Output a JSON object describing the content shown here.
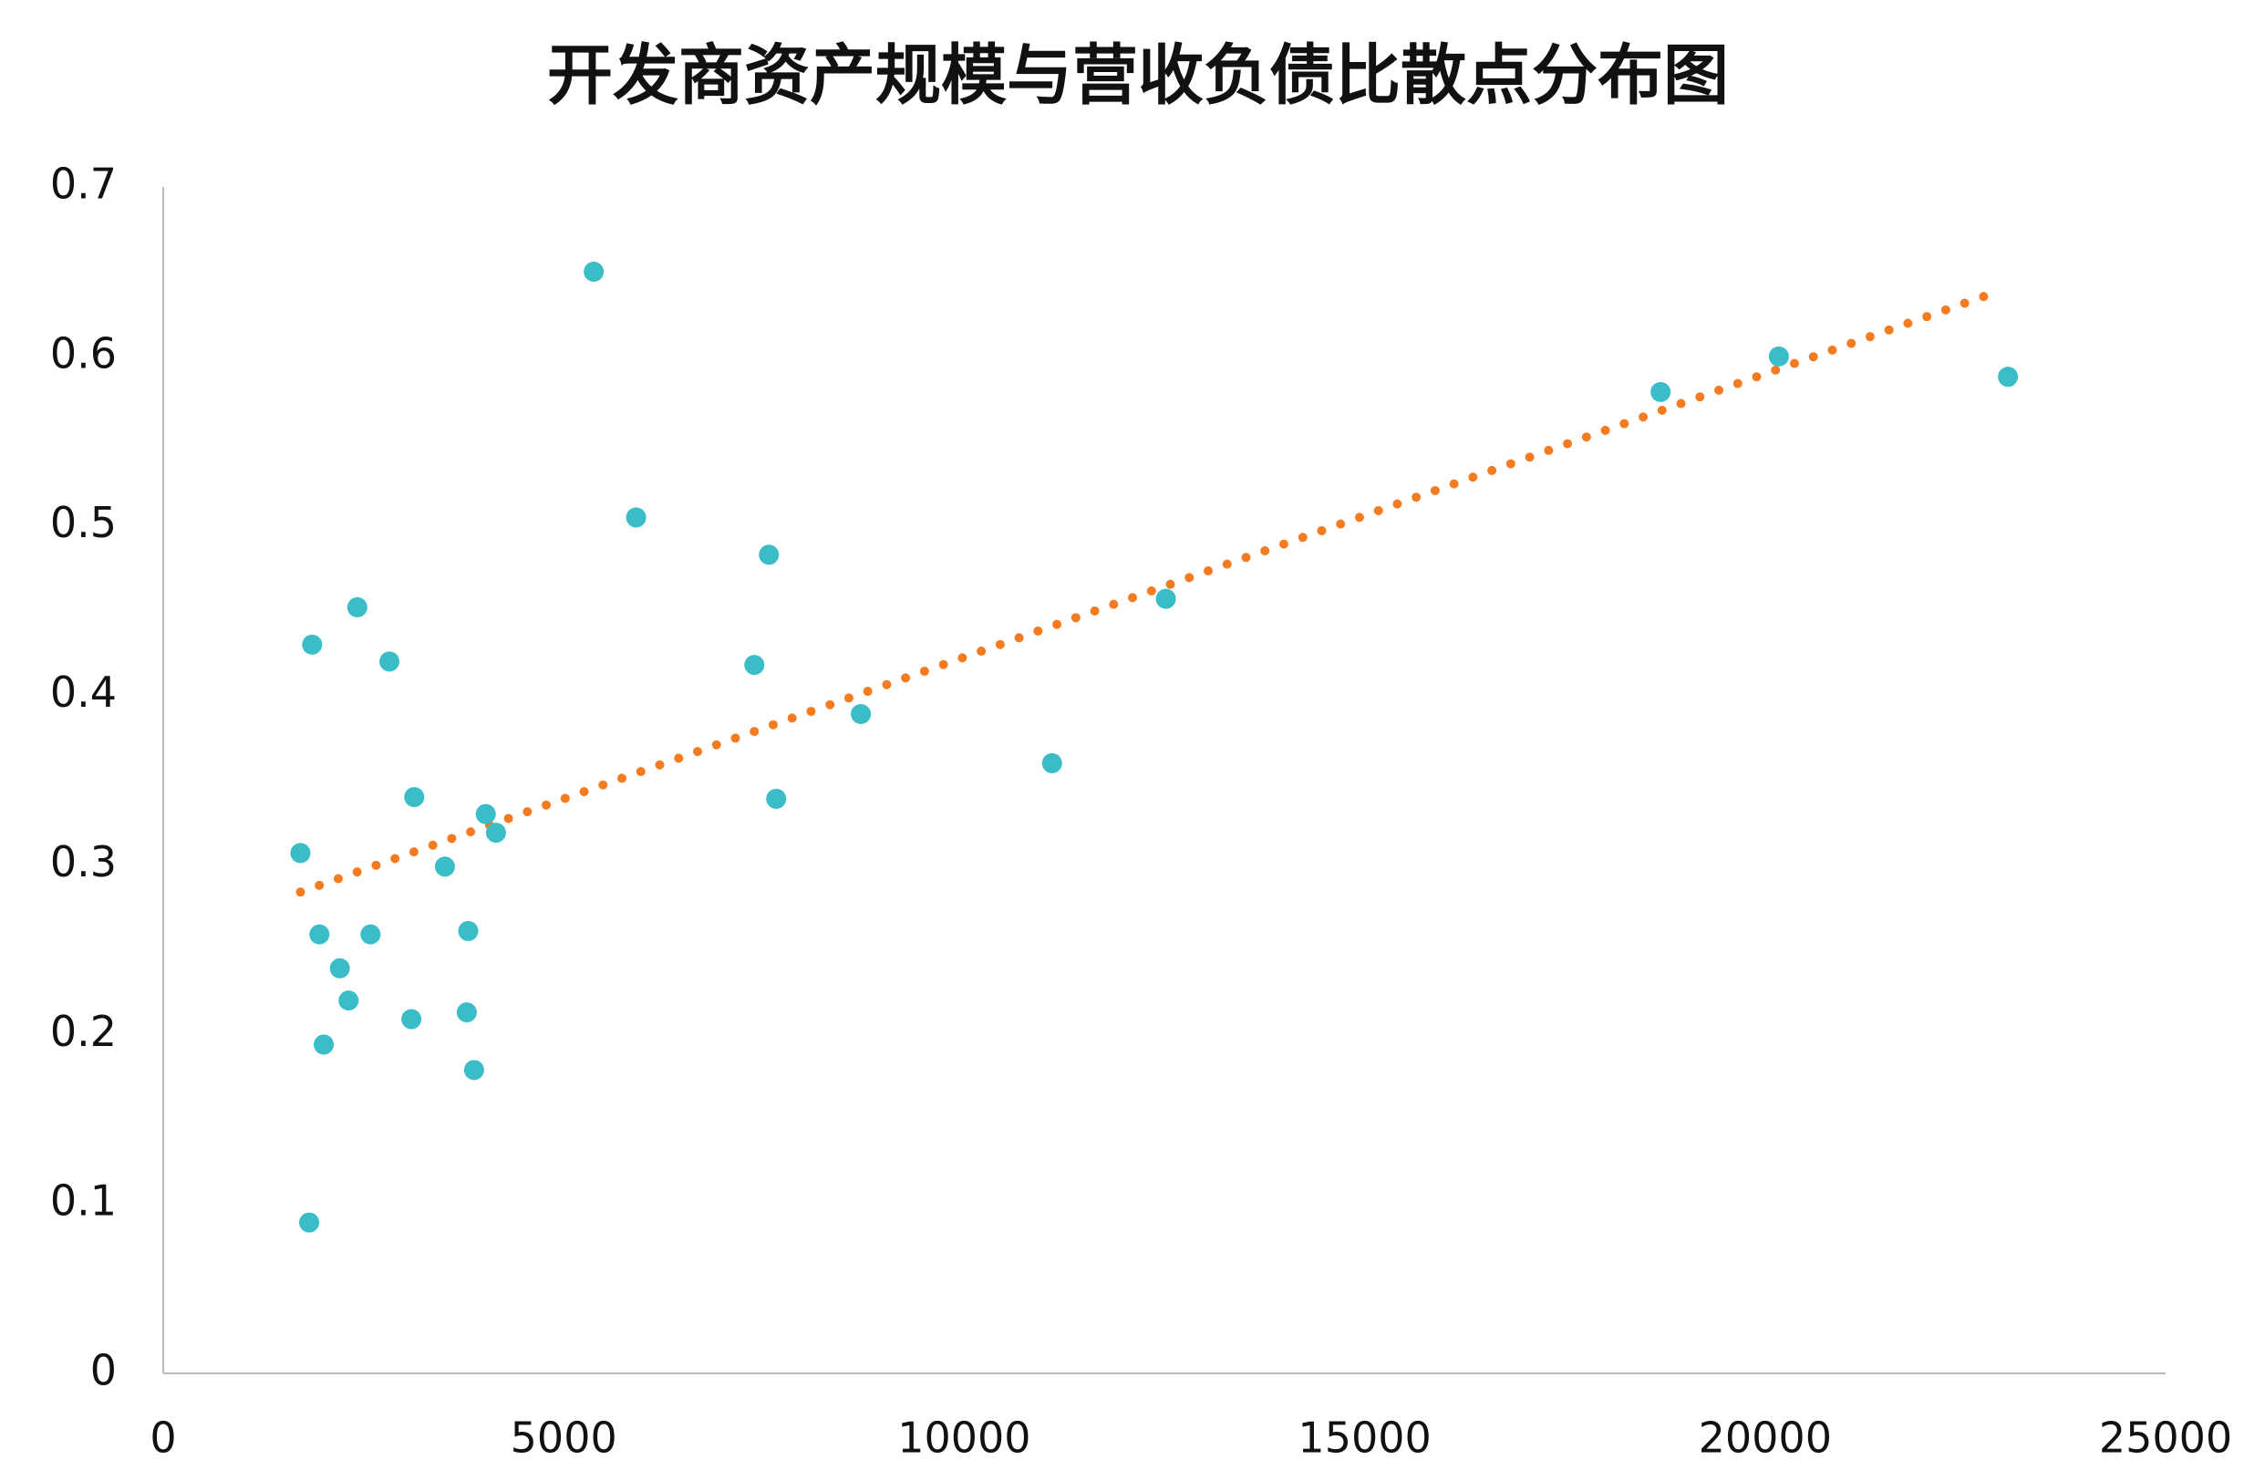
{
  "chart_data": {
    "type": "scatter",
    "title": "开发商资产规模与营收负债比散点分布图",
    "x": [
      1713,
      1859,
      1822,
      1950,
      2004,
      2205,
      2314,
      2423,
      2588,
      2824,
      3098,
      3134,
      3517,
      3790,
      3808,
      3881,
      4027,
      4155,
      5375,
      5904,
      7380,
      7562,
      7653,
      8710,
      11097,
      12518,
      18695,
      20171,
      23032
    ],
    "values": [
      0.307,
      0.43,
      0.089,
      0.259,
      0.194,
      0.239,
      0.22,
      0.452,
      0.259,
      0.42,
      0.209,
      0.34,
      0.299,
      0.213,
      0.261,
      0.179,
      0.33,
      0.319,
      0.65,
      0.505,
      0.418,
      0.483,
      0.339,
      0.389,
      0.36,
      0.457,
      0.579,
      0.6,
      0.588
    ],
    "color": "#3bbdc8",
    "trendline": {
      "x": [
        1713,
        22886
      ],
      "values": [
        0.284,
        0.638
      ],
      "color": "#f47b20"
    },
    "xlim": [
      0,
      25000
    ],
    "xticks": [
      0,
      5000,
      10000,
      15000,
      20000,
      25000
    ],
    "ylim": [
      0,
      0.7
    ],
    "yticks": [
      0,
      0.1,
      0.2,
      0.3,
      0.4,
      0.5,
      0.6,
      0.7
    ],
    "grid": false
  }
}
